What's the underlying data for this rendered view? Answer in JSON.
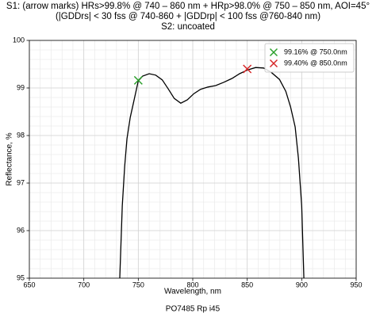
{
  "chart_data": {
    "type": "line",
    "title": [
      "S1: (arrow marks) HRs>99.8% @ 740 – 860 nm + HRp>98.0% @ 750 – 850 nm, AOI=45°",
      "(|GDDrs| < 30 fss @ 740-860 + |GDDrp| < 100 fss @760-840 nm)",
      "S2: uncoated"
    ],
    "xlabel": "Wavelength, nm",
    "ylabel": "Reflectance, %",
    "footer": "PO7485 Rp i45",
    "xlim": [
      650,
      950
    ],
    "ylim": [
      95,
      100
    ],
    "xticks": [
      650,
      700,
      750,
      800,
      850,
      900,
      950
    ],
    "yticks": [
      95,
      96,
      97,
      98,
      99,
      100
    ],
    "xminorticks": [
      660,
      670,
      680,
      690,
      710,
      720,
      730,
      740,
      760,
      770,
      780,
      790,
      810,
      820,
      830,
      840,
      860,
      870,
      880,
      890,
      910,
      920,
      930,
      940
    ],
    "yminorticks": [
      95.2,
      95.4,
      95.6,
      95.8,
      96.2,
      96.4,
      96.6,
      96.8,
      97.2,
      97.4,
      97.6,
      97.8,
      98.2,
      98.4,
      98.6,
      98.8,
      99.2,
      99.4,
      99.6,
      99.8
    ],
    "grid": true,
    "legend": "upper right",
    "series": [
      {
        "color": "#000000",
        "x": [
          733,
          735.3,
          737.5,
          739.6,
          742.6,
          745.5,
          750,
          754,
          760,
          766,
          772,
          777.5,
          783,
          789,
          795,
          801,
          807,
          814,
          821,
          828.5,
          836,
          843,
          850.4,
          857.7,
          865,
          872,
          879.6,
          885.4,
          889.8,
          894,
          897,
          900,
          902
        ],
        "values": [
          95,
          96.52,
          97.35,
          97.93,
          98.38,
          98.68,
          99.15,
          99.25,
          99.3,
          99.27,
          99.17,
          98.98,
          98.78,
          98.68,
          98.75,
          98.88,
          98.97,
          99.02,
          99.05,
          99.12,
          99.2,
          99.3,
          99.38,
          99.43,
          99.42,
          99.33,
          99.18,
          98.93,
          98.6,
          98.18,
          97.52,
          96.52,
          95
        ]
      },
      {
        "name": "99.16% @ 750.0nm",
        "color": "#2ca02c",
        "marker": "x",
        "x": [
          750
        ],
        "values": [
          99.16
        ]
      },
      {
        "name": "99.40% @ 850.0nm",
        "color": "#d62728",
        "marker": "x",
        "x": [
          850
        ],
        "values": [
          99.4
        ]
      }
    ]
  }
}
